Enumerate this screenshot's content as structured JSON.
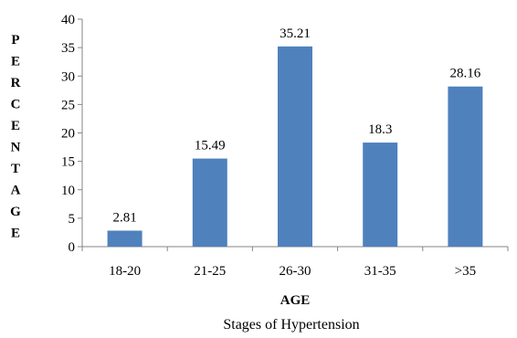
{
  "chart_data": {
    "type": "bar",
    "categories": [
      "18-20",
      "21-25",
      "26-30",
      "31-35",
      ">35"
    ],
    "values": [
      2.81,
      15.49,
      35.21,
      18.3,
      28.16
    ],
    "data_labels": [
      "2.81",
      "15.49",
      "35.21",
      "18.3",
      "28.16"
    ],
    "xlabel": "AGE",
    "ylabel_letters": [
      "P",
      "E",
      "R",
      "C",
      "E",
      "N",
      "T",
      "A",
      "G",
      "E"
    ],
    "ylim": [
      0,
      40
    ],
    "yticks": [
      0,
      5,
      10,
      15,
      20,
      25,
      30,
      35,
      40
    ],
    "grid": false,
    "bar_color": "#4f81bd",
    "caption": "Stages of Hypertension"
  }
}
